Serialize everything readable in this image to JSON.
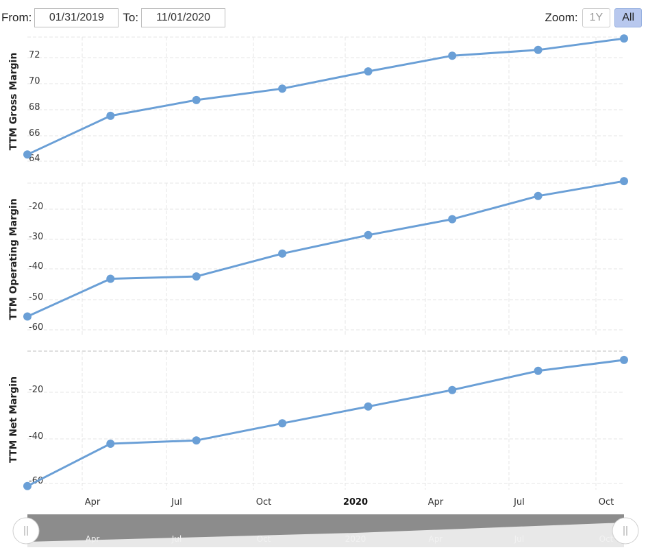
{
  "range": {
    "from_label": "From:",
    "from_value": "01/31/2019",
    "to_label": "To:",
    "to_value": "11/01/2020"
  },
  "zoom": {
    "label": "Zoom:",
    "options": [
      "1Y",
      "All"
    ],
    "active": "All"
  },
  "chart_data": {
    "type": "line",
    "x": [
      "2019-01-31",
      "2019-04-30",
      "2019-07-31",
      "2019-10-31",
      "2020-01-31",
      "2020-04-30",
      "2020-07-31",
      "2020-10-31"
    ],
    "x_ticks": [
      "Apr",
      "Jul",
      "Oct",
      "2020",
      "Apr",
      "Jul",
      "Oct"
    ],
    "grid": true,
    "color": "#6a9fd6",
    "panels": [
      {
        "ylabel": "TTM Gross Margin",
        "yticks": [
          "64",
          "66",
          "68",
          "70",
          "72"
        ],
        "ylim": [
          64,
          73
        ],
        "values": [
          64.8,
          67.5,
          68.6,
          69.4,
          70.6,
          71.7,
          72.1,
          72.9
        ]
      },
      {
        "ylabel": "TTM Operating Margin",
        "yticks": [
          "-60",
          "-50",
          "-40",
          "-30",
          "-20"
        ],
        "ylim": [
          -61,
          -15
        ],
        "values": [
          -55.3,
          -43.9,
          -43.2,
          -36.3,
          -30.7,
          -25.9,
          -18.9,
          -14.4
        ]
      },
      {
        "ylabel": "TTM Net Margin",
        "yticks": [
          "-60",
          "-40",
          "-20"
        ],
        "ylim": [
          -60,
          -13
        ],
        "values": [
          -58.8,
          -44.4,
          -43.3,
          -37.5,
          -31.8,
          -26.2,
          -19.7,
          -16.0
        ]
      }
    ],
    "navigator": {
      "labels": [
        "Apr",
        "Jul",
        "Oct",
        "2020",
        "Apr",
        "Jul",
        "Oct"
      ]
    }
  }
}
